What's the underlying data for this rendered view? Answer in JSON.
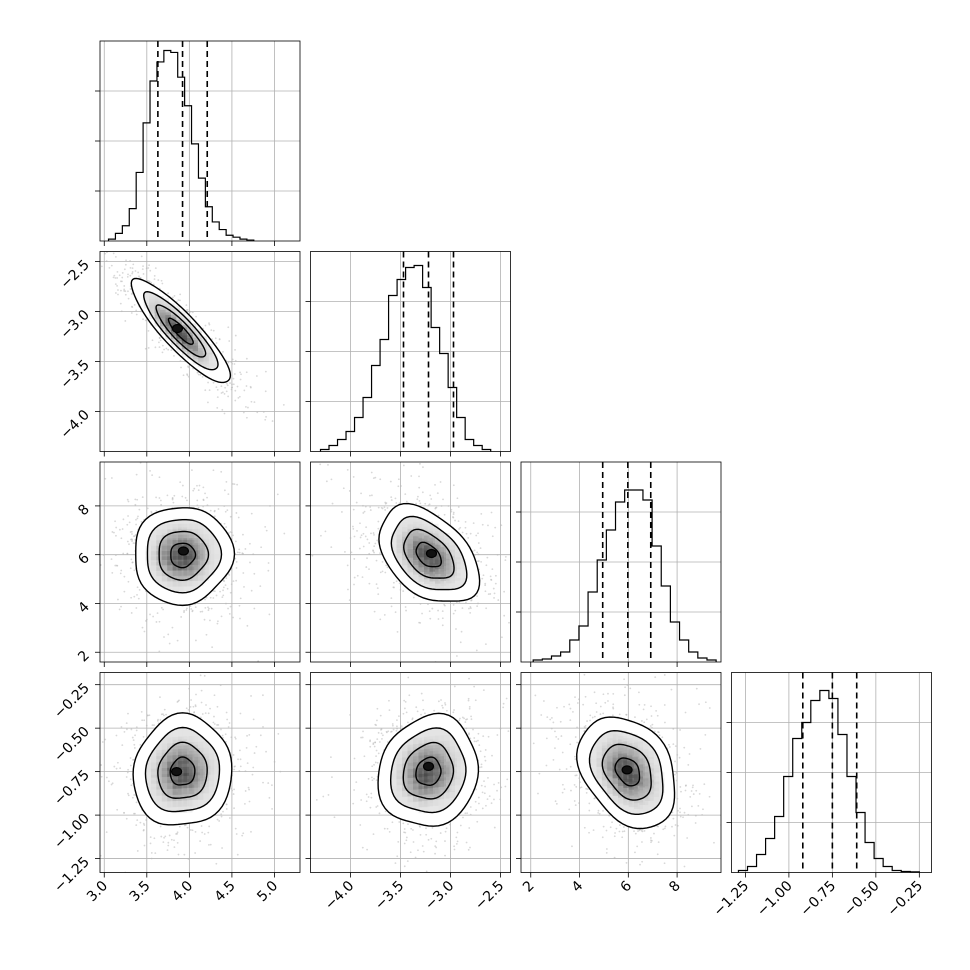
{
  "chart_data": {
    "type": "corner",
    "grid": true,
    "parameters": [
      {
        "range": [
          2.95,
          5.3
        ],
        "ticks": [
          {
            "v": 3.0,
            "label": "3.0"
          },
          {
            "v": 3.5,
            "label": "3.5"
          },
          {
            "v": 4.0,
            "label": "4.0"
          },
          {
            "v": 4.5,
            "label": "4.5"
          },
          {
            "v": 5.0,
            "label": "5.0"
          }
        ],
        "hist_max": 1.05,
        "hist": {
          "start": 3.05,
          "width": 0.0813,
          "counts": [
            0.01,
            0.04,
            0.08,
            0.17,
            0.36,
            0.62,
            0.84,
            0.94,
            1.0,
            0.99,
            0.86,
            0.71,
            0.51,
            0.33,
            0.18,
            0.1,
            0.06,
            0.03,
            0.02,
            0.01,
            0.005
          ]
        },
        "quantiles": [
          3.63,
          3.92,
          4.21
        ]
      },
      {
        "range": [
          -4.4,
          -2.4
        ],
        "ticks": [
          {
            "v": -4.0,
            "label": "−4.0"
          },
          {
            "v": -3.5,
            "label": "−3.5"
          },
          {
            "v": -3.0,
            "label": "−3.0"
          },
          {
            "v": -2.5,
            "label": "−2.5"
          }
        ],
        "hist_max": 1.0,
        "hist": {
          "start": -4.3,
          "width": 0.0851,
          "counts": [
            0.01,
            0.03,
            0.06,
            0.1,
            0.17,
            0.27,
            0.43,
            0.56,
            0.78,
            0.86,
            0.92,
            0.93,
            0.82,
            0.62,
            0.49,
            0.32,
            0.17,
            0.06,
            0.03,
            0.01
          ]
        },
        "quantiles": [
          -3.47,
          -3.22,
          -2.97
        ]
      },
      {
        "range": [
          1.6,
          9.8
        ],
        "ticks": [
          {
            "v": 2,
            "label": "2"
          },
          {
            "v": 4,
            "label": "4"
          },
          {
            "v": 6,
            "label": "6"
          },
          {
            "v": 8,
            "label": "8"
          }
        ],
        "hist_max": 1.0,
        "hist": {
          "start": 2.1,
          "width": 0.375,
          "counts": [
            0.01,
            0.015,
            0.03,
            0.05,
            0.11,
            0.18,
            0.35,
            0.51,
            0.66,
            0.8,
            0.86,
            0.86,
            0.81,
            0.58,
            0.38,
            0.2,
            0.11,
            0.05,
            0.02,
            0.01
          ]
        },
        "quantiles": [
          4.95,
          5.98,
          6.92
        ]
      },
      {
        "range": [
          -1.33,
          -0.18
        ],
        "ticks": [
          {
            "v": -1.25,
            "label": "−1.25"
          },
          {
            "v": -1.0,
            "label": "−1.00"
          },
          {
            "v": -0.75,
            "label": "−0.75"
          },
          {
            "v": -0.5,
            "label": "−0.50"
          },
          {
            "v": -0.25,
            "label": "−0.25"
          }
        ],
        "hist_max": 1.0,
        "hist": {
          "start": -1.29,
          "width": 0.052,
          "counts": [
            0.01,
            0.03,
            0.09,
            0.17,
            0.28,
            0.48,
            0.67,
            0.75,
            0.86,
            0.91,
            0.87,
            0.69,
            0.48,
            0.3,
            0.15,
            0.07,
            0.03,
            0.01,
            0.005,
            0.003
          ]
        },
        "quantiles": [
          -0.92,
          -0.75,
          -0.61
        ]
      }
    ],
    "pairs": [
      {
        "x": 0,
        "y": 1,
        "center": [
          3.9,
          -3.2
        ],
        "sd": [
          0.29,
          0.26
        ],
        "corr": -0.88,
        "peak": [
          3.86,
          -3.17
        ],
        "spread": 0.02
      },
      {
        "x": 0,
        "y": 2,
        "center": [
          3.92,
          5.98
        ],
        "sd": [
          0.29,
          1.0
        ],
        "corr": 0.02,
        "peak": [
          3.93,
          6.15
        ],
        "spread": 0.05
      },
      {
        "x": 1,
        "y": 2,
        "center": [
          -3.22,
          5.98
        ],
        "sd": [
          0.25,
          1.0
        ],
        "corr": -0.42,
        "peak": [
          -3.19,
          6.05
        ],
        "spread": 0.05
      },
      {
        "x": 0,
        "y": 3,
        "center": [
          3.92,
          -0.75
        ],
        "sd": [
          0.29,
          0.16
        ],
        "corr": 0.05,
        "peak": [
          3.85,
          -0.75
        ],
        "spread": 0.05
      },
      {
        "x": 1,
        "y": 3,
        "center": [
          -3.22,
          -0.75
        ],
        "sd": [
          0.25,
          0.16
        ],
        "corr": 0.1,
        "peak": [
          -3.22,
          -0.72
        ],
        "spread": 0.05
      },
      {
        "x": 2,
        "y": 3,
        "center": [
          5.98,
          -0.75
        ],
        "sd": [
          1.0,
          0.16
        ],
        "corr": -0.3,
        "peak": [
          5.95,
          -0.74
        ],
        "spread": 0.05
      }
    ],
    "contour_levels_sigma": [
      0.5,
      1.0,
      1.5,
      2.0
    ],
    "scatter_points_per_panel": 900
  }
}
